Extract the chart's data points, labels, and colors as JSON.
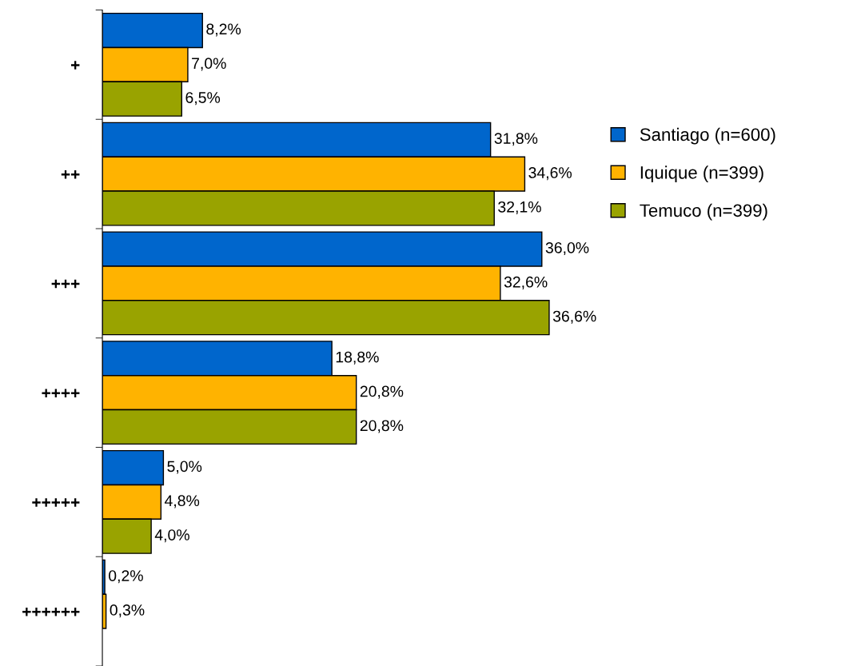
{
  "chart_data": {
    "type": "bar",
    "orientation": "horizontal",
    "categories": [
      "+",
      "++",
      "+++",
      "++++",
      "+++++",
      "++++++"
    ],
    "series": [
      {
        "name": "Santiago (n=600)",
        "color": "#0066cc",
        "values": [
          8.2,
          31.8,
          36.0,
          18.8,
          5.0,
          0.2
        ],
        "value_labels": [
          "8,2%",
          "31,8%",
          "36,0%",
          "18,8%",
          "5,0%",
          "0,2%"
        ]
      },
      {
        "name": "Iquique (n=399)",
        "color": "#ffb300",
        "values": [
          7.0,
          34.6,
          32.6,
          20.8,
          4.8,
          0.3
        ],
        "value_labels": [
          "7,0%",
          "34,6%",
          "32,6%",
          "20,8%",
          "4,8%",
          "0,3%"
        ]
      },
      {
        "name": "Temuco (n=399)",
        "color": "#99a300",
        "values": [
          6.5,
          32.1,
          36.6,
          20.8,
          4.0,
          null
        ],
        "value_labels": [
          "6,5%",
          "32,1%",
          "36,6%",
          "20,8%",
          "4,0%",
          null
        ]
      }
    ],
    "legend": "right",
    "grid": false
  }
}
